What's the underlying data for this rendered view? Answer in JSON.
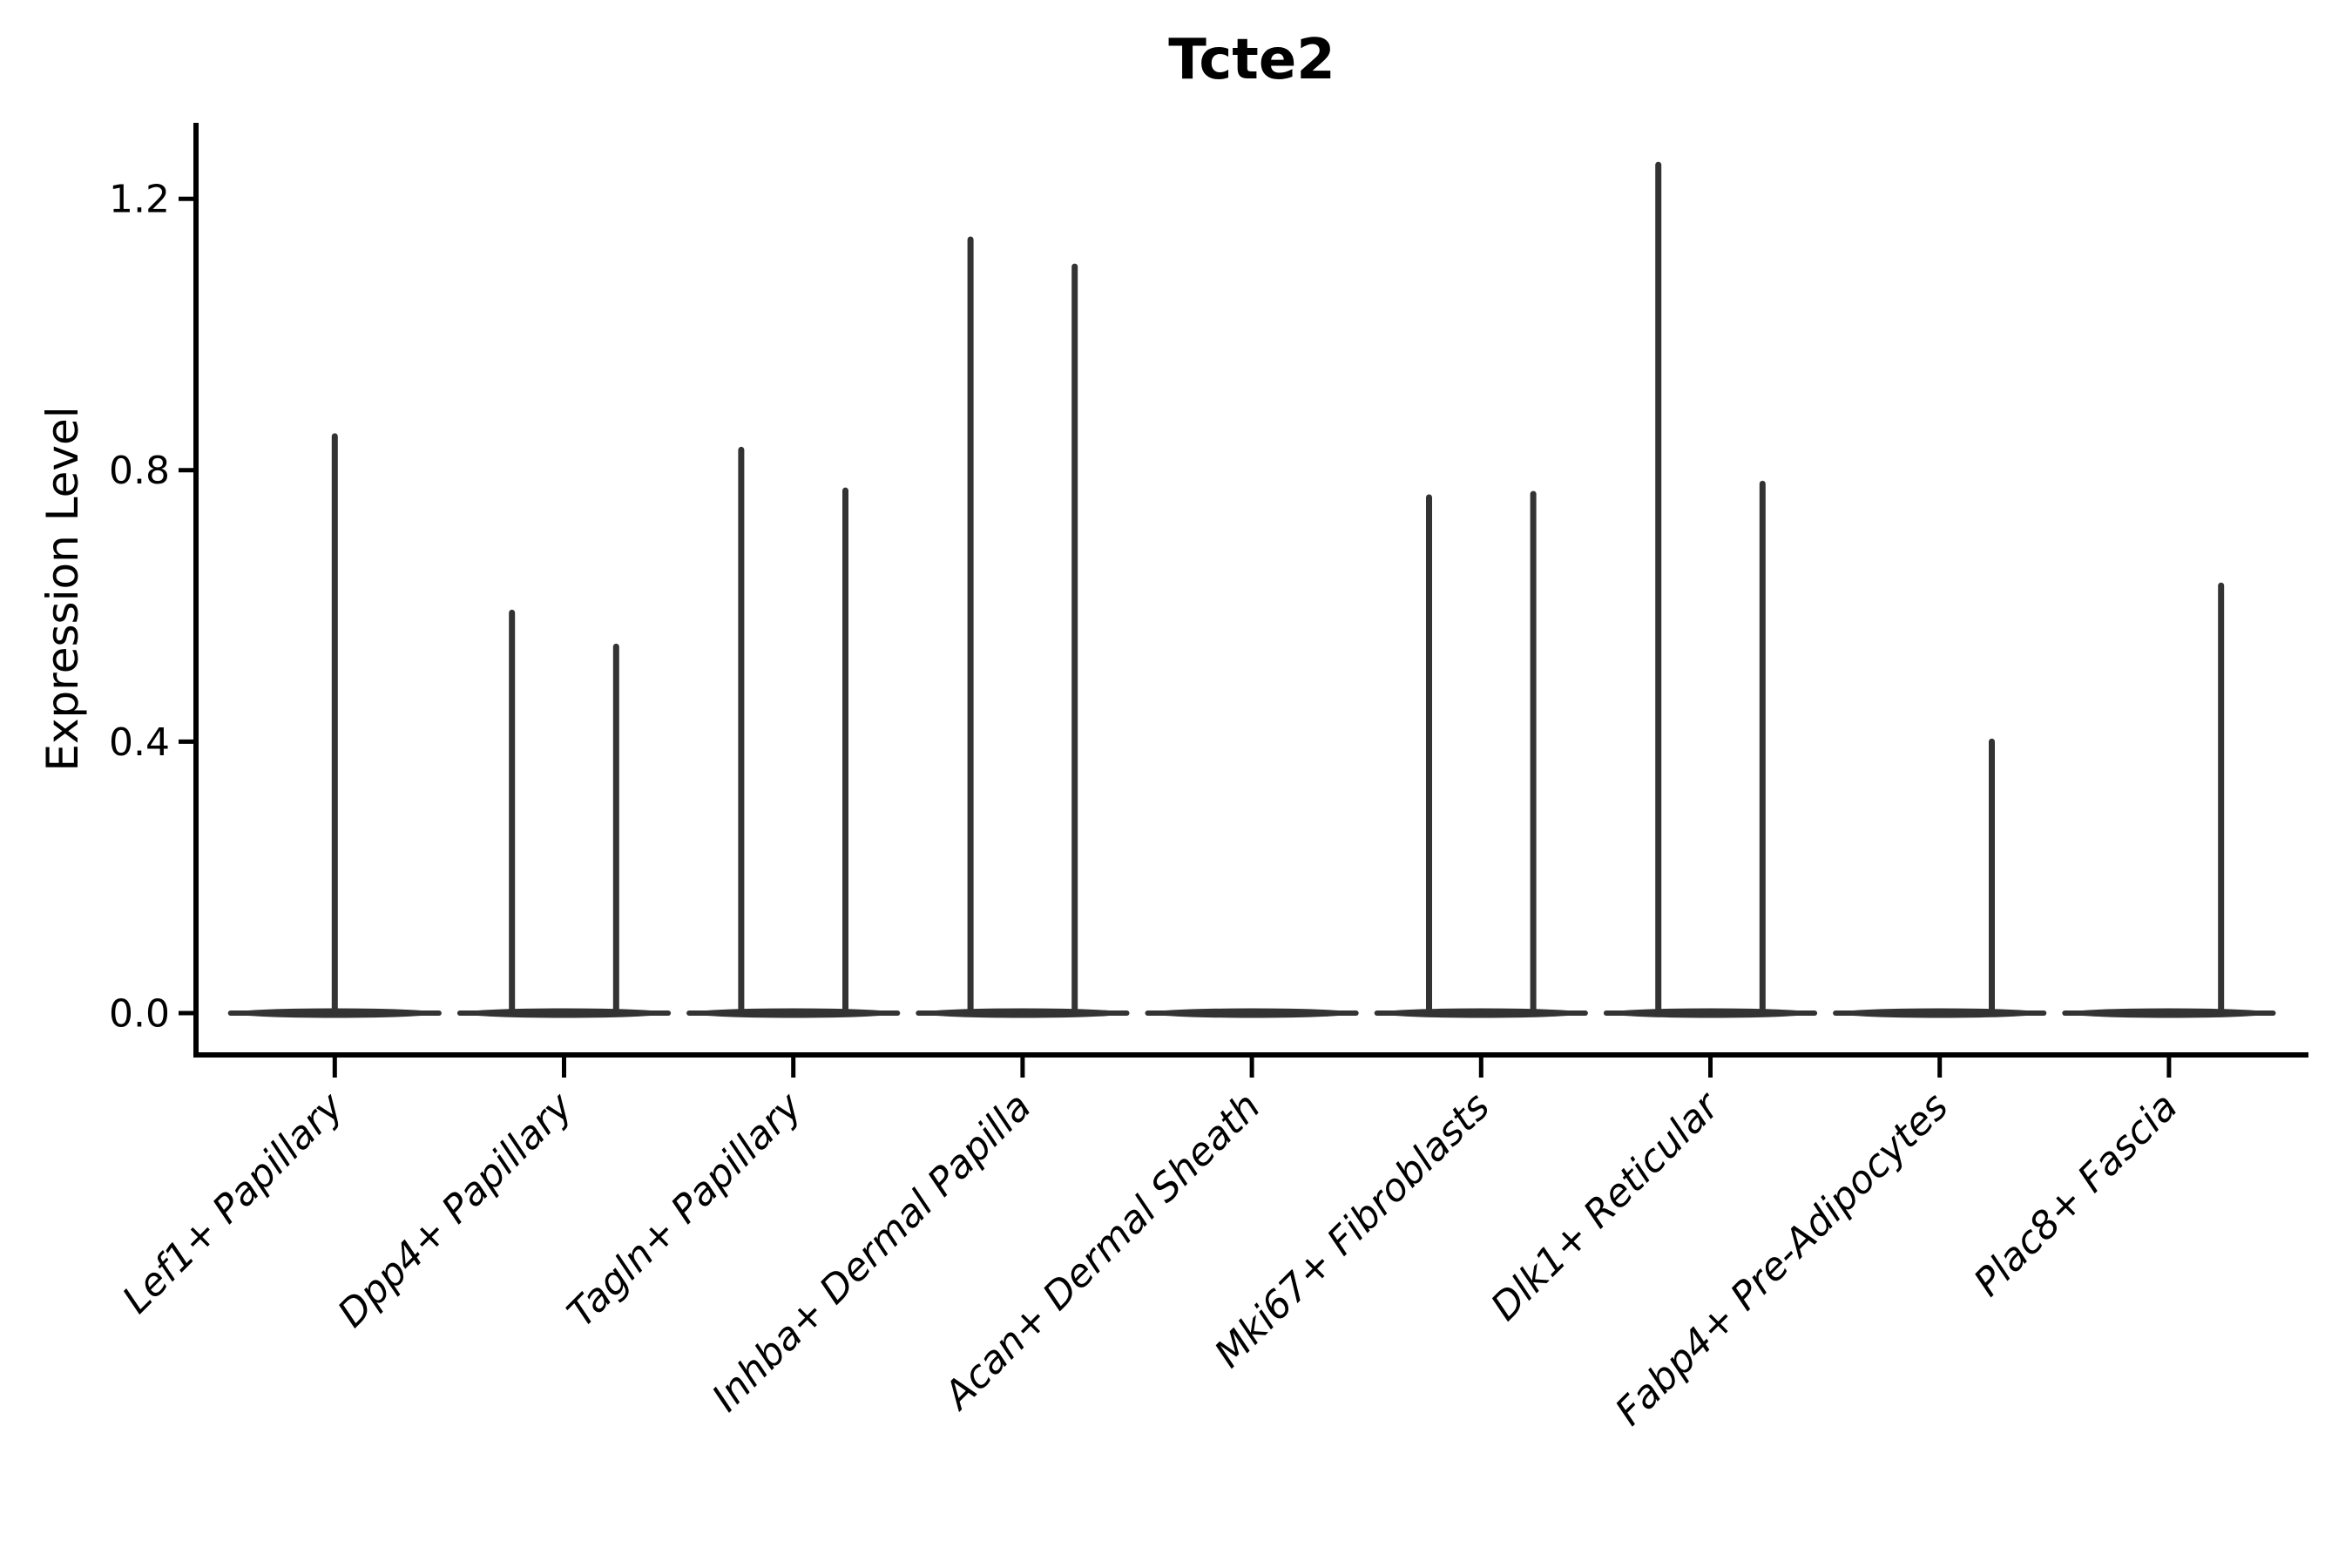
{
  "chart_data": {
    "type": "violin",
    "title": "Tcte2",
    "xlabel": "",
    "ylabel": "Expression Level",
    "yticks": [
      "0.0",
      "0.4",
      "0.8",
      "1.2"
    ],
    "ytick_values": [
      0.0,
      0.4,
      0.8,
      1.2
    ],
    "ylim": [
      -0.06,
      1.31
    ],
    "grid": false,
    "legend": "none",
    "categories": [
      "Lef1+ Papillary",
      "Dpp4+ Papillary",
      "Tagln+ Papillary",
      "Inhba+ Dermal Papilla",
      "Acan+ Dermal Sheath",
      "Mki67+ Fibroblasts",
      "Dlk1+ Reticular",
      "Fabp4+ Pre-Adipocytes",
      "Plac8+ Fascia"
    ],
    "violins": [
      {
        "category": "Lef1+ Papillary",
        "spikes": [
          {
            "pos": "center",
            "max": 0.85
          }
        ]
      },
      {
        "category": "Dpp4+ Papillary",
        "spikes": [
          {
            "pos": "left",
            "max": 0.59
          },
          {
            "pos": "right",
            "max": 0.54
          }
        ]
      },
      {
        "category": "Tagln+ Papillary",
        "spikes": [
          {
            "pos": "left",
            "max": 0.83
          },
          {
            "pos": "right",
            "max": 0.77
          }
        ]
      },
      {
        "category": "Inhba+ Dermal Papilla",
        "spikes": [
          {
            "pos": "left",
            "max": 1.14
          },
          {
            "pos": "right",
            "max": 1.1
          }
        ]
      },
      {
        "category": "Acan+ Dermal Sheath",
        "spikes": []
      },
      {
        "category": "Mki67+ Fibroblasts",
        "spikes": [
          {
            "pos": "left",
            "max": 0.76
          },
          {
            "pos": "right",
            "max": 0.765
          }
        ]
      },
      {
        "category": "Dlk1+ Reticular",
        "spikes": [
          {
            "pos": "left",
            "max": 1.25
          },
          {
            "pos": "right",
            "max": 0.78
          }
        ]
      },
      {
        "category": "Fabp4+ Pre-Adipocytes",
        "spikes": [
          {
            "pos": "right",
            "max": 0.4
          }
        ]
      },
      {
        "category": "Plac8+ Fascia",
        "spikes": [
          {
            "pos": "right",
            "max": 0.63
          }
        ]
      }
    ],
    "colors": {
      "violin": "#333333",
      "axis": "#000000",
      "text": "#000000",
      "background": "#ffffff"
    }
  }
}
